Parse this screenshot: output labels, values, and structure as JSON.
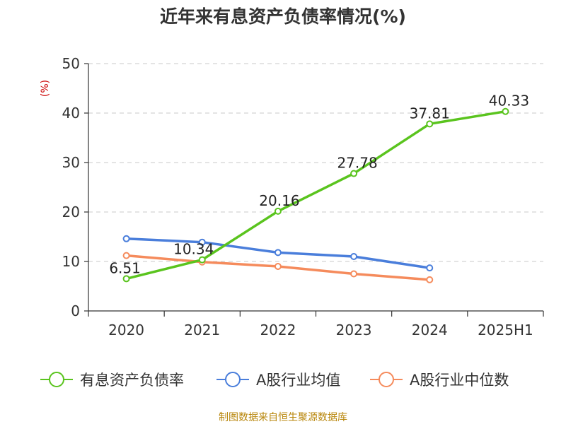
{
  "chart_data": {
    "type": "line",
    "title": "近年来有息资产负债率情况(%)",
    "unit_label": "(%)",
    "categories": [
      "2020",
      "2021",
      "2022",
      "2023",
      "2024",
      "2025H1"
    ],
    "ylim": [
      0,
      50
    ],
    "yticks": [
      0,
      10,
      20,
      30,
      40,
      50
    ],
    "grid": true,
    "legend_position": "bottom",
    "series": [
      {
        "name": "有息资产负债率",
        "color": "#5ac41e",
        "values": [
          6.51,
          10.34,
          20.16,
          27.78,
          37.81,
          40.33
        ],
        "labels": [
          "6.51",
          "10.34",
          "20.16",
          "27.78",
          "37.81",
          "40.33"
        ]
      },
      {
        "name": "A股行业均值",
        "color": "#4a7edb",
        "values": [
          14.6,
          13.9,
          11.8,
          11.0,
          8.7,
          null
        ]
      },
      {
        "name": "A股行业中位数",
        "color": "#f58b5c",
        "values": [
          11.2,
          9.9,
          9.0,
          7.5,
          6.3,
          null
        ]
      }
    ],
    "source": "制图数据来自恒生聚源数据库"
  }
}
